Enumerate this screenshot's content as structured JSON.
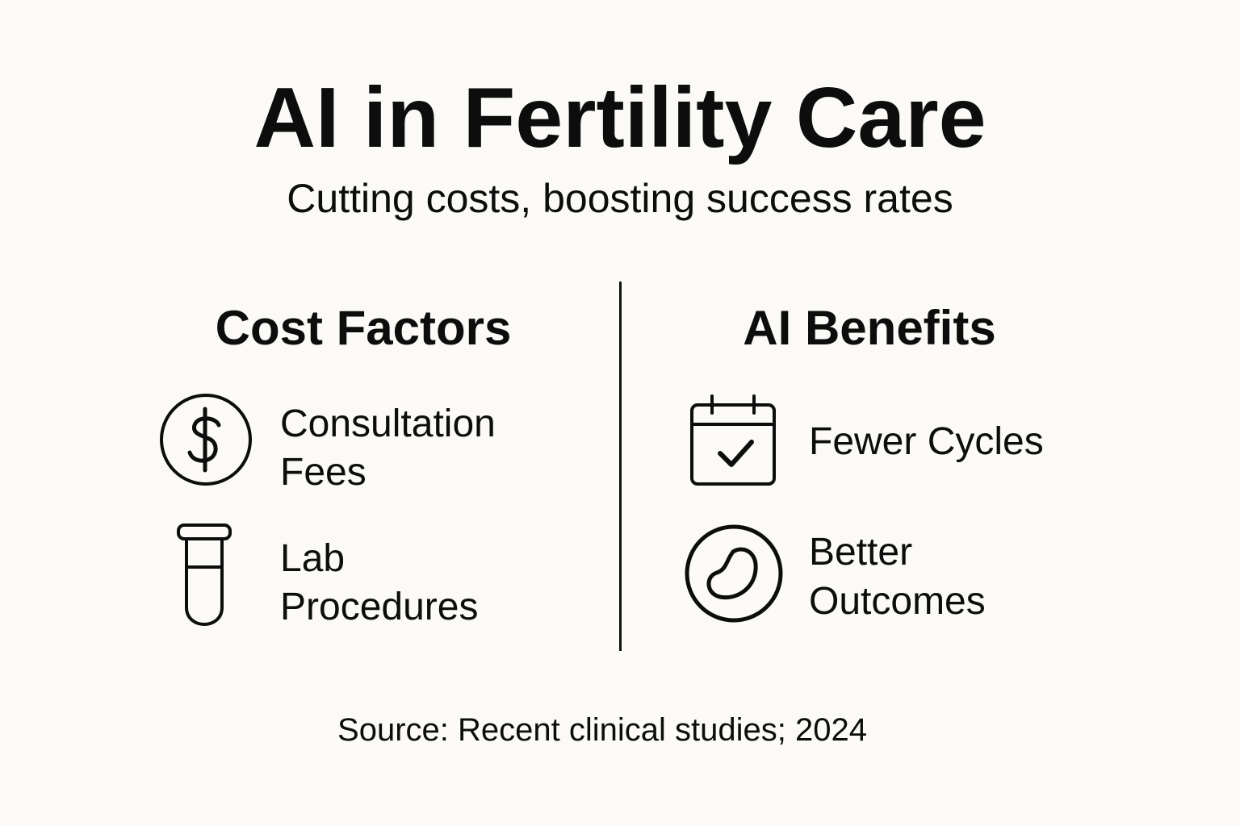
{
  "title": "AI in Fertility Care",
  "subtitle": "Cutting costs, boosting success rates",
  "left_column": {
    "heading": "Cost Factors",
    "items": [
      {
        "icon": "dollar-icon",
        "label_line1": "Consultation",
        "label_line2": "Fees"
      },
      {
        "icon": "test-tube-icon",
        "label_line1": "Lab",
        "label_line2": "Procedures"
      }
    ]
  },
  "right_column": {
    "heading": "AI Benefits",
    "items": [
      {
        "icon": "calendar-check-icon",
        "label_line1": "Fewer Cycles"
      },
      {
        "icon": "embryo-icon",
        "label_line1": "Better",
        "label_line2": "Outcomes"
      }
    ]
  },
  "source": "Source: Recent clinical studies; 2024"
}
